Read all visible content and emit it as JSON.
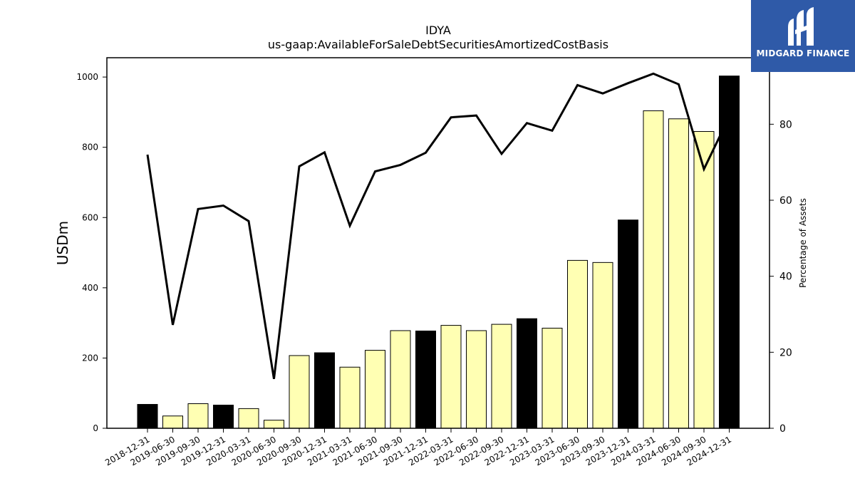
{
  "chart_data": {
    "type": "bar+line",
    "title": "IDYA",
    "subtitle": "us-gaap:AvailableForSaleDebtSecuritiesAmortizedCostBasis",
    "ylabel_left": "USDm",
    "ylabel_right": "Percentage of Assets",
    "ylim_left": [
      0,
      1055
    ],
    "ylim_right": [
      0,
      97.5
    ],
    "yticks_left": [
      0,
      200,
      400,
      600,
      800,
      1000
    ],
    "yticks_right": [
      0,
      20,
      40,
      60,
      80
    ],
    "categories": [
      "2018-12-31",
      "2019-06-30",
      "2019-09-30",
      "2019-12-31",
      "2020-03-31",
      "2020-06-30",
      "2020-09-30",
      "2020-12-31",
      "2021-03-31",
      "2021-06-30",
      "2021-09-30",
      "2021-12-31",
      "2022-03-31",
      "2022-06-30",
      "2022-09-30",
      "2022-12-31",
      "2023-03-31",
      "2023-06-30",
      "2023-09-30",
      "2023-12-31",
      "2024-03-31",
      "2024-06-30",
      "2024-09-30",
      "2024-12-31"
    ],
    "bar_values": [
      68,
      35,
      70,
      66,
      56,
      23,
      207,
      215,
      174,
      222,
      278,
      277,
      293,
      278,
      296,
      312,
      285,
      478,
      472,
      593,
      904,
      881,
      845,
      1003
    ],
    "bar_colors": [
      "#000000",
      "#ffffb3",
      "#ffffb3",
      "#000000",
      "#ffffb3",
      "#ffffb3",
      "#ffffb3",
      "#000000",
      "#ffffb3",
      "#ffffb3",
      "#ffffb3",
      "#000000",
      "#ffffb3",
      "#ffffb3",
      "#ffffb3",
      "#000000",
      "#ffffb3",
      "#ffffb3",
      "#ffffb3",
      "#000000",
      "#ffffb3",
      "#ffffb3",
      "#ffffb3",
      "#000000"
    ],
    "line_values": [
      72.0,
      27.2,
      57.7,
      58.6,
      54.5,
      13.0,
      68.9,
      72.6,
      53.3,
      67.6,
      69.3,
      72.5,
      81.8,
      82.3,
      72.2,
      80.3,
      78.3,
      90.3,
      88.1,
      90.8,
      93.3,
      90.5,
      68.2,
      82.0
    ],
    "line_color": "#000000"
  },
  "logo": {
    "text": "MIDGARD FINANCE",
    "background": "#2f5aa8"
  }
}
